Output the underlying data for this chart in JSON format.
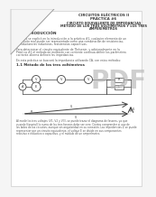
{
  "bg_color": "#f5f5f5",
  "page_bg": "#ffffff",
  "title1": "CIRCUITOS ELÉCTRICOS II",
  "title2": "PRÁCTICA #6",
  "title3": "CIRCUITO EQUIVALENTE DE IMPEDANCIAS",
  "title4": "MÉTODO DE LOS TRES VOLTÍMETROS Y LOS TRES",
  "title5": "AMPERÍMETROS",
  "section1": "1.   INTRODUCCIÓN",
  "section2": "1.1 Método de los tres voltímetros",
  "pdf_color": "#bbbbbb",
  "text_color": "#555555",
  "dark_text": "#333333"
}
